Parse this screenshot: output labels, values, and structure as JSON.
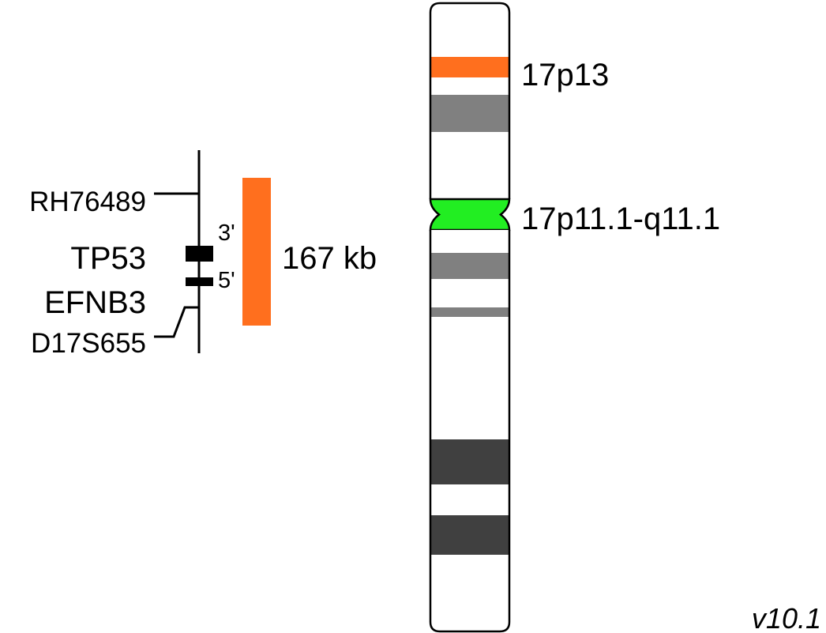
{
  "locus": {
    "markers": {
      "top": "RH76489",
      "bottom": "D17S655"
    },
    "genes": [
      {
        "name": "TP53"
      },
      {
        "name": "EFNB3"
      }
    ],
    "end_labels": {
      "three_prime": "3'",
      "five_prime": "5'"
    },
    "region_size": "167 kb",
    "region_color": "#FF6F1E"
  },
  "chromosome": {
    "band_labels": {
      "highlight": "17p13",
      "centromere": "17p11.1-q11.1"
    },
    "colors": {
      "highlight": "#FF6F1E",
      "centromere": "#22EE22",
      "gpos_light": "#808080",
      "gpos_dark": "#404040",
      "outline": "#000000"
    }
  },
  "version": "v10.1"
}
